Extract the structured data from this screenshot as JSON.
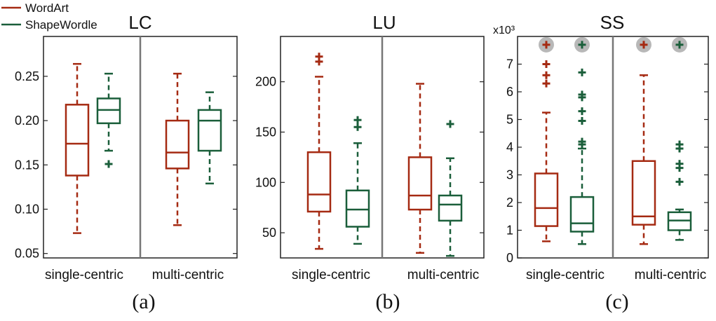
{
  "legend": {
    "wordart": "WordArt",
    "shapewordle": "ShapeWordle"
  },
  "colors": {
    "wordart": "#a52a12",
    "shapewordle": "#1a5e3a",
    "divider": "#777777",
    "frame": "#222222",
    "marker_glow": "#a0a0a0"
  },
  "chart_data": [
    {
      "type": "box",
      "panel": "a",
      "title": "LC",
      "caption": "(a)",
      "ylim": [
        0.045,
        0.295
      ],
      "yticks": [
        0.05,
        0.1,
        0.15,
        0.2,
        0.25
      ],
      "ytick_labels": [
        "0.05",
        "0.10",
        "0.15",
        "0.20",
        "0.25"
      ],
      "groups": [
        "single-centric",
        "multi-centric"
      ],
      "series": [
        {
          "name": "WordArt",
          "boxes": [
            {
              "group": "single-centric",
              "whisker_low": 0.073,
              "q1": 0.138,
              "median": 0.174,
              "q3": 0.218,
              "whisker_high": 0.264,
              "outliers": [],
              "highlight": false
            },
            {
              "group": "multi-centric",
              "whisker_low": 0.082,
              "q1": 0.146,
              "median": 0.164,
              "q3": 0.2,
              "whisker_high": 0.253,
              "outliers": [],
              "highlight": false
            }
          ]
        },
        {
          "name": "ShapeWordle",
          "boxes": [
            {
              "group": "single-centric",
              "whisker_low": 0.166,
              "q1": 0.197,
              "median": 0.212,
              "q3": 0.225,
              "whisker_high": 0.253,
              "outliers": [
                0.151
              ],
              "highlight": false
            },
            {
              "group": "multi-centric",
              "whisker_low": 0.129,
              "q1": 0.166,
              "median": 0.2,
              "q3": 0.212,
              "whisker_high": 0.232,
              "outliers": [],
              "highlight": false
            }
          ]
        }
      ]
    },
    {
      "type": "box",
      "panel": "b",
      "title": "LU",
      "caption": "(b)",
      "ylim": [
        25,
        245
      ],
      "yticks": [
        50,
        100,
        150,
        200
      ],
      "ytick_labels": [
        "50",
        "100",
        "150",
        "200"
      ],
      "groups": [
        "single-centric",
        "multi-centric"
      ],
      "series": [
        {
          "name": "WordArt",
          "boxes": [
            {
              "group": "single-centric",
              "whisker_low": 34,
              "q1": 71,
              "median": 88,
              "q3": 130,
              "whisker_high": 205,
              "outliers": [
                220,
                225
              ],
              "highlight": false
            },
            {
              "group": "multi-centric",
              "whisker_low": 30,
              "q1": 73,
              "median": 87,
              "q3": 125,
              "whisker_high": 198,
              "outliers": [],
              "highlight": false
            }
          ]
        },
        {
          "name": "ShapeWordle",
          "boxes": [
            {
              "group": "single-centric",
              "whisker_low": 39,
              "q1": 56,
              "median": 73,
              "q3": 92,
              "whisker_high": 139,
              "outliers": [
                155,
                162
              ],
              "highlight": false
            },
            {
              "group": "multi-centric",
              "whisker_low": 27,
              "q1": 62,
              "median": 78,
              "q3": 87,
              "whisker_high": 124,
              "outliers": [
                158
              ],
              "highlight": false
            }
          ]
        }
      ]
    },
    {
      "type": "box",
      "panel": "c",
      "title": "SS",
      "caption": "(c)",
      "axis_multiplier": "x10³",
      "ylim": [
        0,
        8.0
      ],
      "yticks": [
        0,
        1,
        2,
        3,
        4,
        5,
        6,
        7
      ],
      "ytick_labels": [
        "0",
        "1",
        "2",
        "3",
        "4",
        "5",
        "6",
        "7"
      ],
      "groups": [
        "single-centric",
        "multi-centric"
      ],
      "series": [
        {
          "name": "WordArt",
          "boxes": [
            {
              "group": "single-centric",
              "whisker_low": 0.6,
              "q1": 1.15,
              "median": 1.8,
              "q3": 3.05,
              "whisker_high": 5.25,
              "outliers": [
                6.3,
                6.6,
                7.0
              ],
              "highlight": true,
              "highlight_value": 7.7
            },
            {
              "group": "multi-centric",
              "whisker_low": 0.5,
              "q1": 1.2,
              "median": 1.5,
              "q3": 3.5,
              "whisker_high": 6.6,
              "outliers": [],
              "highlight": true,
              "highlight_value": 7.7
            }
          ]
        },
        {
          "name": "ShapeWordle",
          "boxes": [
            {
              "group": "single-centric",
              "whisker_low": 0.5,
              "q1": 0.95,
              "median": 1.25,
              "q3": 2.2,
              "whisker_high": 3.95,
              "outliers": [
                4.1,
                4.2,
                4.95,
                5.3,
                5.8,
                5.9,
                6.7
              ],
              "highlight": true,
              "highlight_value": 7.7
            },
            {
              "group": "multi-centric",
              "whisker_low": 0.65,
              "q1": 1.0,
              "median": 1.35,
              "q3": 1.65,
              "whisker_high": 1.75,
              "outliers": [
                2.75,
                3.25,
                3.4,
                3.95,
                4.1
              ],
              "highlight": true,
              "highlight_value": 7.7
            }
          ]
        }
      ]
    }
  ]
}
